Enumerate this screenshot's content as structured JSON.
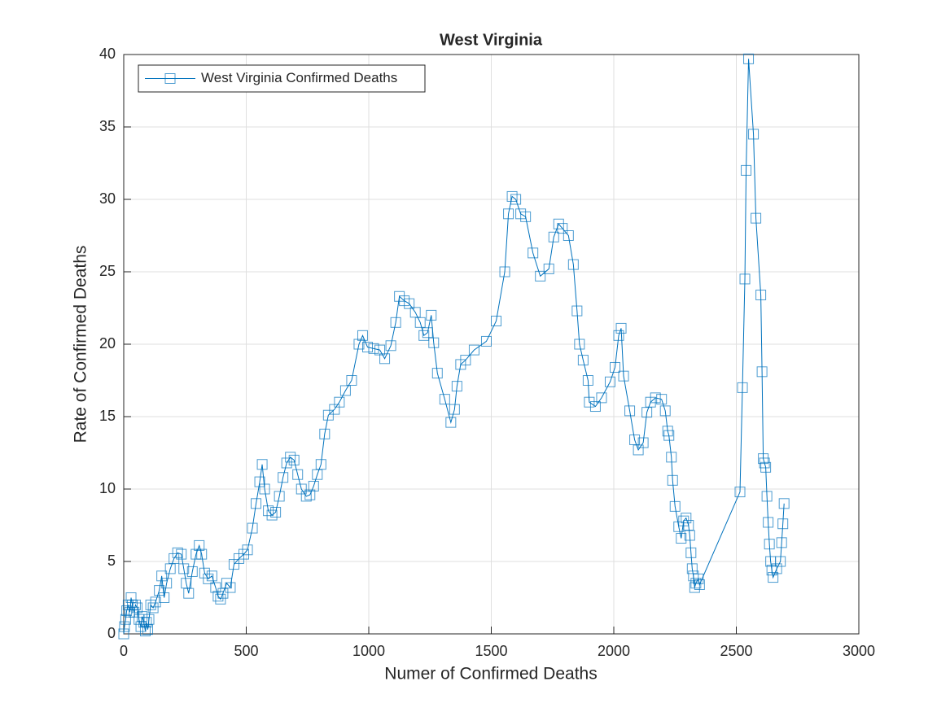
{
  "chart_data": {
    "type": "line",
    "title": "West Virginia",
    "x_label": "Numer of Confirmed Deaths",
    "y_label": "Rate of Confirmed Deaths",
    "xlim": [
      0,
      3000
    ],
    "xticks": [
      0,
      500,
      1000,
      1500,
      2000,
      2500,
      3000
    ],
    "ylim": [
      0,
      40
    ],
    "yticks": [
      0,
      5,
      10,
      15,
      20,
      25,
      30,
      35,
      40
    ],
    "grid": true,
    "legend": "northwest",
    "marker": "square",
    "series": [
      {
        "name": "West Virginia Confirmed Deaths",
        "color": "#0072BD",
        "x": [
          0,
          3,
          8,
          12,
          18,
          25,
          30,
          35,
          42,
          48,
          55,
          62,
          70,
          75,
          82,
          88,
          93,
          98,
          103,
          110,
          120,
          130,
          145,
          155,
          165,
          175,
          190,
          205,
          220,
          235,
          245,
          255,
          265,
          280,
          295,
          308,
          318,
          330,
          345,
          360,
          375,
          385,
          395,
          405,
          420,
          435,
          450,
          470,
          490,
          505,
          525,
          540,
          555,
          565,
          575,
          590,
          605,
          620,
          635,
          650,
          665,
          680,
          695,
          710,
          725,
          745,
          760,
          775,
          790,
          805,
          820,
          835,
          860,
          880,
          905,
          930,
          960,
          975,
          995,
          1020,
          1045,
          1065,
          1090,
          1110,
          1125,
          1145,
          1165,
          1190,
          1210,
          1225,
          1240,
          1255,
          1265,
          1280,
          1310,
          1335,
          1350,
          1360,
          1375,
          1395,
          1430,
          1480,
          1520,
          1555,
          1570,
          1585,
          1600,
          1620,
          1640,
          1670,
          1700,
          1735,
          1755,
          1775,
          1790,
          1815,
          1835,
          1850,
          1860,
          1875,
          1895,
          1900,
          1925,
          1950,
          1985,
          2005,
          2020,
          2030,
          2040,
          2065,
          2085,
          2100,
          2120,
          2135,
          2150,
          2170,
          2195,
          2210,
          2220,
          2225,
          2235,
          2240,
          2250,
          2265,
          2275,
          2285,
          2295,
          2305,
          2310,
          2315,
          2320,
          2325,
          2330,
          2335,
          2345,
          2350,
          2515,
          2525,
          2535,
          2540,
          2550,
          2570,
          2580,
          2600,
          2605,
          2610,
          2615,
          2620,
          2625,
          2630,
          2635,
          2640,
          2645,
          2650,
          2665,
          2680,
          2685,
          2690,
          2695
        ],
        "values": [
          0,
          0.5,
          1,
          1.6,
          2,
          1.5,
          2.5,
          2,
          1.5,
          2,
          1.8,
          1,
          0.5,
          1.2,
          0.8,
          0.2,
          0.8,
          0.3,
          1,
          2,
          1.8,
          2.2,
          3,
          4,
          2.5,
          3.5,
          4.5,
          5.2,
          5.6,
          5.5,
          4.5,
          3.5,
          2.8,
          4.3,
          5.5,
          6.1,
          5.5,
          4.2,
          3.8,
          4,
          3.2,
          2.6,
          2.4,
          2.8,
          3.5,
          3.2,
          4.8,
          5.2,
          5.5,
          5.8,
          7.3,
          9,
          10.5,
          11.7,
          10,
          8.5,
          8.2,
          8.4,
          9.5,
          10.8,
          11.8,
          12.2,
          12,
          11,
          10,
          9.5,
          9.6,
          10.2,
          11,
          11.7,
          13.8,
          15.1,
          15.5,
          16,
          16.8,
          17.5,
          20,
          20.6,
          19.8,
          19.7,
          19.6,
          19,
          19.9,
          21.5,
          23.3,
          23,
          22.8,
          22.2,
          21.5,
          20.6,
          20.8,
          22,
          20.1,
          18,
          16.2,
          14.6,
          15.5,
          17.1,
          18.6,
          18.9,
          19.6,
          20.2,
          21.6,
          25,
          29,
          30.2,
          30,
          29,
          28.8,
          26.3,
          24.7,
          25.2,
          27.4,
          28.3,
          28,
          27.5,
          25.5,
          22.3,
          20,
          18.9,
          17.5,
          16,
          15.7,
          16.3,
          17.4,
          18.4,
          20.6,
          21.1,
          17.8,
          15.4,
          13.4,
          12.7,
          13.2,
          15.3,
          16,
          16.3,
          16.2,
          15.4,
          14,
          13.7,
          12.2,
          10.6,
          8.8,
          7.4,
          6.6,
          7.8,
          8,
          7.5,
          6.8,
          5.6,
          4.5,
          4,
          3.2,
          3.5,
          3.8,
          3.4,
          9.8,
          17,
          24.5,
          32,
          39.7,
          34.5,
          28.7,
          23.4,
          18.1,
          12.1,
          11.8,
          11.5,
          9.5,
          7.7,
          6.2,
          5,
          4.4,
          3.9,
          4.5,
          5,
          6.3,
          7.6,
          9
        ]
      }
    ]
  }
}
